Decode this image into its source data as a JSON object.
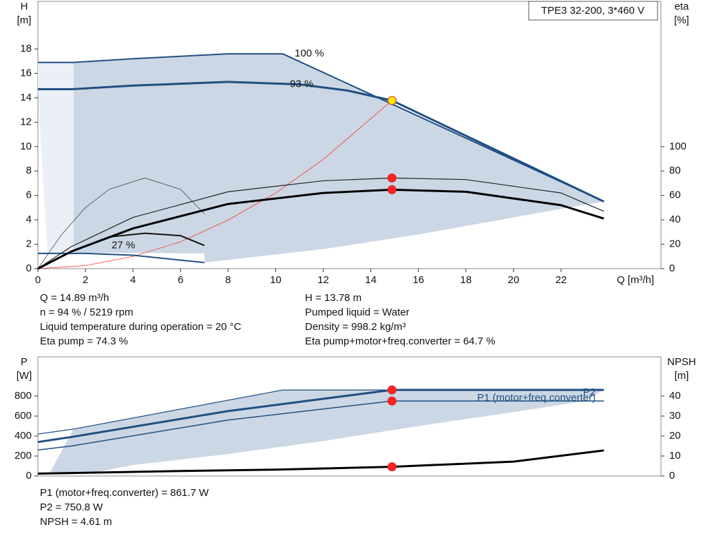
{
  "chart_data": [
    {
      "type": "line",
      "title": "TPE3 32-200, 3*460 V",
      "y_label": [
        "H",
        "[m]"
      ],
      "y2_label": [
        "eta",
        "[%]"
      ],
      "x_label": "Q [m³/h]",
      "xlim": [
        0,
        26.2
      ],
      "xticks": [
        0,
        2,
        4,
        6,
        8,
        10,
        12,
        14,
        16,
        18,
        20,
        22
      ],
      "ylim": [
        0,
        21.9
      ],
      "yticks": [
        0,
        2,
        4,
        6,
        8,
        10,
        12,
        14,
        16,
        18
      ],
      "y2lim": [
        0,
        219
      ],
      "y2ticks": [
        0,
        20,
        40,
        60,
        80,
        100
      ],
      "series": [
        {
          "kind": "area",
          "color": "#eaf0f6",
          "x": [
            0,
            1.5,
            1.5,
            0.4,
            0
          ],
          "values": [
            16.9,
            16.9,
            1.3,
            1.3,
            14.6
          ]
        },
        {
          "kind": "area",
          "color": "#cbd7e4",
          "x": [
            1.5,
            4,
            8,
            10.3,
            23.8,
            22,
            20,
            16,
            12,
            7,
            7,
            4,
            1.5
          ],
          "values": [
            16.9,
            17.2,
            17.6,
            17.6,
            5.5,
            4.9,
            4.2,
            2.8,
            1.6,
            0.5,
            1.25,
            1.3,
            1.3
          ]
        },
        {
          "kind": "line",
          "color": "#ff3333",
          "width": 0.8,
          "x": [
            0,
            2,
            4,
            6,
            8,
            10,
            12,
            14.89
          ],
          "values": [
            0,
            0.25,
            1,
            2.2,
            3.98,
            6.2,
            8.95,
            13.78
          ]
        },
        {
          "kind": "line",
          "color": "#333333",
          "width": 0.7,
          "axis": "y2",
          "x": [
            0,
            1,
            2,
            3,
            4.5,
            6,
            7
          ],
          "values": [
            0,
            28,
            50,
            65,
            74.3,
            65,
            45
          ]
        },
        {
          "kind": "line",
          "color": "#111111",
          "width": 2,
          "axis": "y2",
          "x": [
            0,
            1.5,
            3,
            4.5,
            6,
            7
          ],
          "values": [
            0,
            15,
            26,
            29,
            27,
            19
          ]
        },
        {
          "kind": "line",
          "color": "#1f4f82",
          "width": 2,
          "x": [
            0,
            2,
            4,
            6,
            7
          ],
          "values": [
            1.25,
            1.25,
            1.1,
            0.7,
            0.5
          ]
        },
        {
          "kind": "line",
          "color": "#222222",
          "width": 1.2,
          "axis": "y2",
          "x": [
            0,
            1.4,
            4,
            8,
            12,
            14.89,
            18,
            22,
            23.8
          ],
          "values": [
            0,
            18,
            42,
            63,
            72,
            74.3,
            73,
            62,
            47
          ]
        },
        {
          "kind": "line",
          "color": "#000000",
          "width": 3,
          "axis": "y2",
          "x": [
            0,
            1.4,
            4,
            8,
            12,
            14.89,
            18,
            22,
            23.8
          ],
          "values": [
            0,
            14,
            33,
            53,
            62,
            64.7,
            63,
            52,
            41
          ]
        },
        {
          "kind": "line",
          "color": "#1f4f82",
          "width": 2,
          "x": [
            0,
            1.5,
            4,
            8,
            10.3,
            23.8
          ],
          "values": [
            16.9,
            16.9,
            17.2,
            17.6,
            17.6,
            5.5
          ]
        },
        {
          "kind": "line",
          "color": "#1f4f82",
          "width": 3,
          "x": [
            0,
            1.4,
            4,
            8,
            11,
            13,
            14.89,
            23.8
          ],
          "values": [
            14.7,
            14.7,
            15,
            15.3,
            15.1,
            14.6,
            13.78,
            5.5
          ]
        },
        {
          "kind": "points",
          "color": "#ff2222",
          "axis": "y2",
          "x": [
            14.89,
            14.89
          ],
          "values": [
            74.3,
            64.7
          ]
        },
        {
          "kind": "points",
          "color": "#ffe600",
          "x": [
            14.89
          ],
          "values": [
            13.78
          ]
        }
      ],
      "annotations": [
        {
          "text": "100 %",
          "x": 10.8,
          "y": 17.6
        },
        {
          "text": "93 %",
          "x": 10.6,
          "y": 15.1
        },
        {
          "text": "27 %",
          "x": 3.1,
          "y": 1.9
        }
      ],
      "info_left": [
        "Q = 14.89 m³/h",
        "n = 94 % / 5219 rpm",
        "Liquid temperature during operation = 20 °C",
        "Eta pump = 74.3 %"
      ],
      "info_right": [
        "H = 13.78 m",
        "Pumped liquid = Water",
        "Density = 998.2 kg/m³",
        "Eta pump+motor+freq.converter = 64.7 %"
      ]
    },
    {
      "type": "line",
      "y_label": [
        "P",
        "[W]"
      ],
      "y2_label": [
        "NPSH",
        "[m]"
      ],
      "xlim": [
        0,
        26.2
      ],
      "ylim": [
        0,
        1193
      ],
      "yticks": [
        0,
        200,
        400,
        600,
        800
      ],
      "y2lim": [
        0,
        59.65
      ],
      "y2ticks": [
        0,
        10,
        20,
        30,
        40
      ],
      "series": [
        {
          "kind": "area",
          "color": "#cbd7e4",
          "x": [
            1.5,
            10.3,
            23.8,
            23,
            20,
            16,
            12,
            8,
            4,
            2.5,
            1.5,
            0.5
          ],
          "values": [
            470,
            861,
            861,
            750,
            640,
            500,
            350,
            220,
            110,
            40,
            30,
            30
          ]
        },
        {
          "kind": "line",
          "color": "#1f4f82",
          "width": 1.2,
          "x": [
            0,
            1.5,
            10.3,
            23.8
          ],
          "values": [
            420,
            470,
            861,
            861
          ]
        },
        {
          "kind": "line",
          "color": "#1f4f82",
          "width": 3,
          "x": [
            0,
            1.4,
            8,
            14.89,
            23.8
          ],
          "values": [
            340,
            390,
            650,
            861.7,
            861.7
          ],
          "name": "P1 (motor+freq.converter)"
        },
        {
          "kind": "line",
          "color": "#1f4f82",
          "width": 1.5,
          "x": [
            0,
            1.4,
            8,
            14.89,
            23.8
          ],
          "values": [
            260,
            300,
            560,
            750.8,
            750.8
          ],
          "name": "P2"
        },
        {
          "kind": "line",
          "color": "#000000",
          "width": 3,
          "axis": "y2",
          "x": [
            0,
            6,
            10,
            14.89,
            20,
            23.8
          ],
          "values": [
            1.2,
            2.5,
            3.2,
            4.61,
            7.2,
            12.8
          ]
        },
        {
          "kind": "points",
          "color": "#ff2222",
          "x": [
            14.89,
            14.89
          ],
          "values": [
            861.7,
            750.8
          ]
        },
        {
          "kind": "points",
          "color": "#ff2222",
          "axis": "y2",
          "x": [
            14.89
          ],
          "values": [
            4.61
          ]
        }
      ],
      "info_left": [
        "P1 (motor+freq.converter) = 861.7 W",
        "P2 = 750.8 W",
        "NPSH = 4.61 m"
      ]
    }
  ]
}
